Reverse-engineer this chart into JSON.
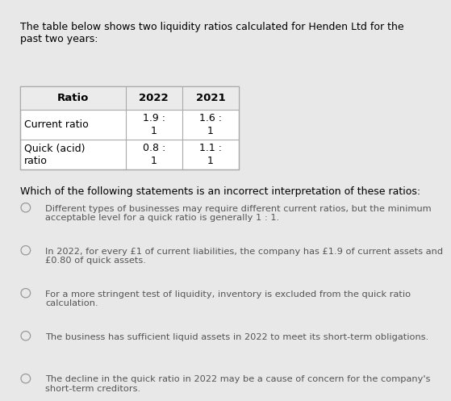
{
  "background_color": "#e8e8e8",
  "intro_text": "The table below shows two liquidity ratios calculated for Henden Ltd for the\npast two years:",
  "table": {
    "headers": [
      "Ratio",
      "2022",
      "2021"
    ],
    "rows": [
      [
        "Current ratio",
        "1.9 :",
        "1.6 :"
      ],
      [
        "",
        "1",
        "1"
      ],
      [
        "Quick (acid)",
        "0.8 :",
        "1.1 :"
      ],
      [
        "ratio",
        "1",
        "1"
      ]
    ]
  },
  "question": "Which of the following statements is an incorrect interpretation of these ratios:",
  "options": [
    "Different types of businesses may require different current ratios, but the minimum\nacceptable level for a quick ratio is generally 1 : 1.",
    "In 2022, for every £1 of current liabilities, the company has £1.9 of current assets and\n£0.80 of quick assets.",
    "For a more stringent test of liquidity, inventory is excluded from the quick ratio\ncalculation.",
    "The business has sufficient liquid assets in 2022 to meet its short-term obligations.",
    "The decline in the quick ratio in 2022 may be a cause of concern for the company's\nshort-term creditors."
  ],
  "font_size_intro": 9.0,
  "font_size_table_header": 9.5,
  "font_size_table_body": 9.0,
  "font_size_question": 9.0,
  "font_size_options": 8.2
}
